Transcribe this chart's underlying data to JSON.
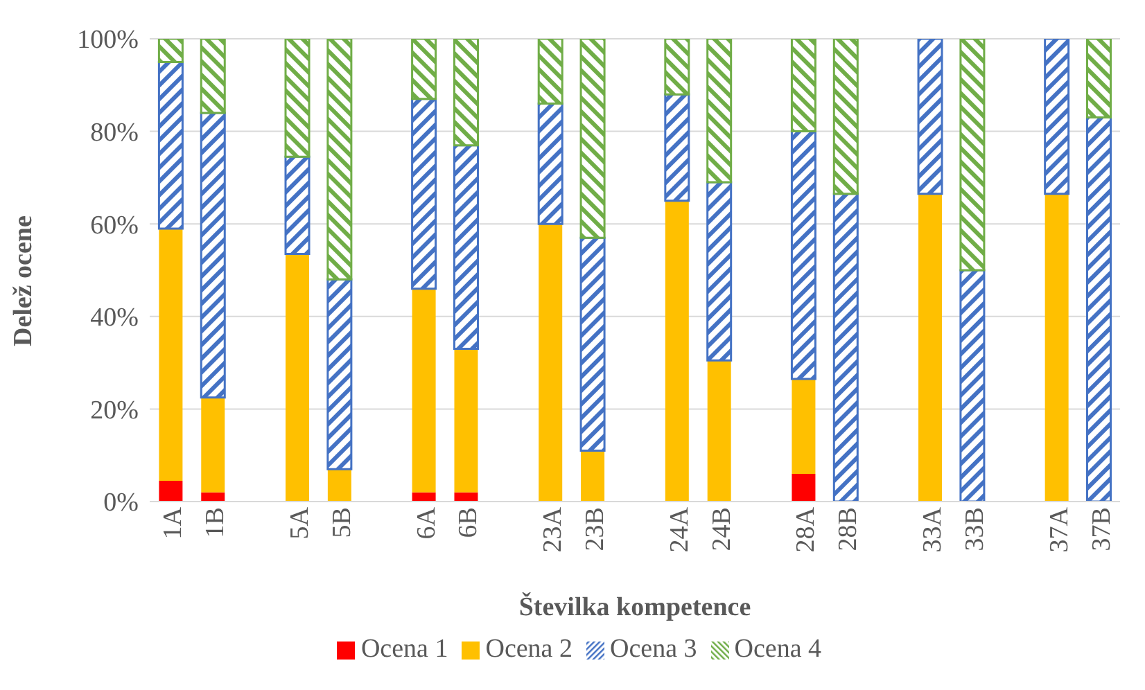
{
  "chart_data": {
    "type": "bar",
    "stacked": true,
    "xlabel": "Številka kompetence",
    "ylabel": "Delež ocene",
    "categories": [
      "1A",
      "1B",
      null,
      "5A",
      "5B",
      null,
      "6A",
      "6B",
      null,
      "23A",
      "23B",
      null,
      "24A",
      "24B",
      null,
      "28A",
      "28B",
      null,
      "33A",
      "33B",
      null,
      "37A",
      "37B"
    ],
    "series": [
      {
        "name": "Ocena 1",
        "color": "#ff0000",
        "values": [
          4.5,
          2,
          null,
          0,
          0,
          null,
          2,
          2,
          null,
          0,
          0,
          null,
          0,
          0,
          null,
          6,
          0,
          null,
          0,
          0,
          null,
          0,
          0
        ]
      },
      {
        "name": "Ocena 2",
        "color": "#ffc000",
        "values": [
          54.5,
          20.5,
          null,
          53.5,
          7,
          null,
          44,
          31,
          null,
          60,
          11,
          null,
          65,
          30.5,
          null,
          20.5,
          0,
          null,
          66.5,
          0,
          null,
          66.5,
          0
        ]
      },
      {
        "name": "Ocena 3",
        "color": "#4472c4",
        "values": [
          36,
          61.5,
          null,
          21,
          41,
          null,
          41,
          44,
          null,
          26,
          46,
          null,
          23,
          38.5,
          null,
          53.5,
          66.5,
          null,
          33.5,
          50,
          null,
          33.5,
          83
        ]
      },
      {
        "name": "Ocena 4",
        "color": "#70ad47",
        "values": [
          5,
          16,
          null,
          25.5,
          52,
          null,
          13,
          23,
          null,
          14,
          43,
          null,
          12,
          31,
          null,
          20,
          33.5,
          null,
          0,
          50,
          null,
          0,
          17
        ]
      }
    ],
    "ylim": [
      0,
      100
    ],
    "yticks": [
      {
        "value": 0,
        "label": "0%"
      },
      {
        "value": 20,
        "label": "20%"
      },
      {
        "value": 40,
        "label": "40%"
      },
      {
        "value": 60,
        "label": "60%"
      },
      {
        "value": 80,
        "label": "80%"
      },
      {
        "value": 100,
        "label": "100%"
      }
    ],
    "grid": "y",
    "legend": "bottom"
  }
}
